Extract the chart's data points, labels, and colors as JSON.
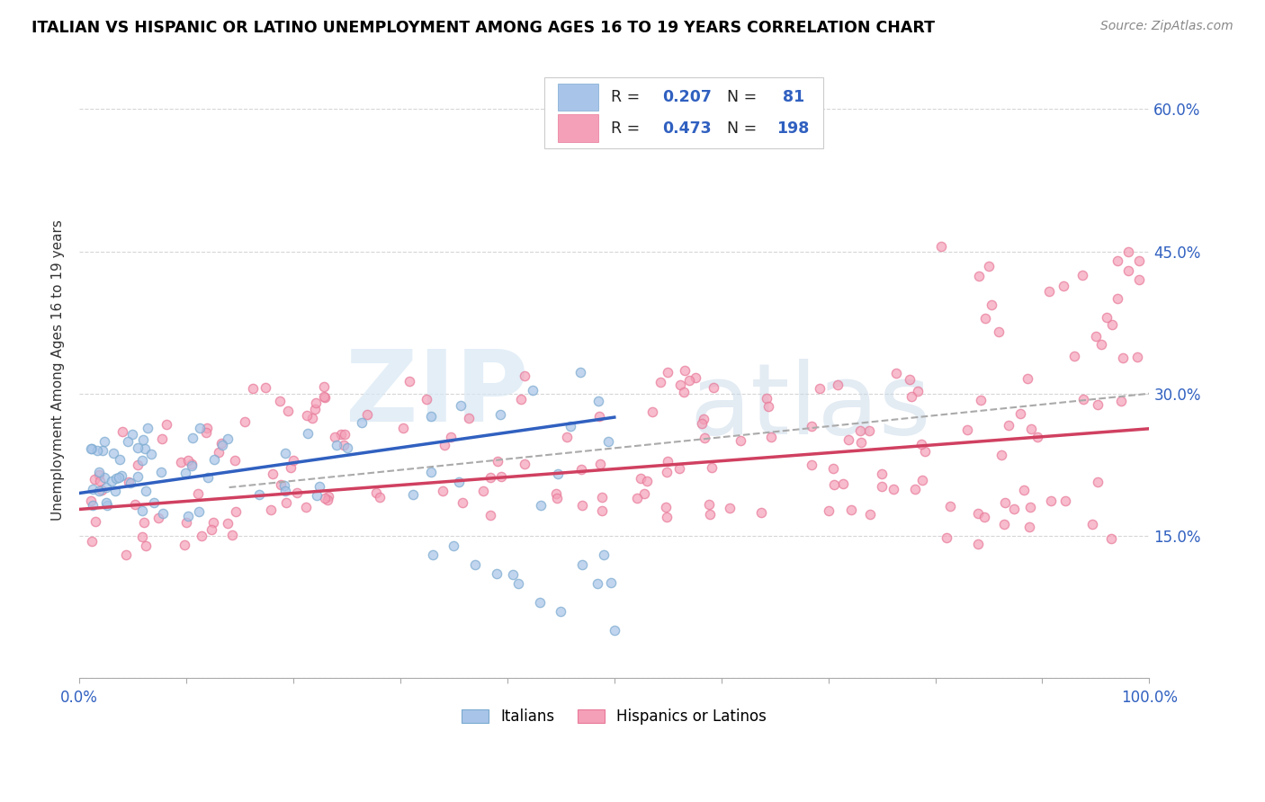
{
  "title": "ITALIAN VS HISPANIC OR LATINO UNEMPLOYMENT AMONG AGES 16 TO 19 YEARS CORRELATION CHART",
  "source": "Source: ZipAtlas.com",
  "ylabel": "Unemployment Among Ages 16 to 19 years",
  "xlim": [
    0,
    1.0
  ],
  "ylim": [
    0,
    0.65
  ],
  "xticks": [
    0.0,
    0.1,
    0.2,
    0.3,
    0.4,
    0.5,
    0.6,
    0.7,
    0.8,
    0.9,
    1.0
  ],
  "xticklabels": [
    "0.0%",
    "",
    "",
    "",
    "",
    "",
    "",
    "",
    "",
    "",
    "100.0%"
  ],
  "yticks": [
    0.0,
    0.15,
    0.3,
    0.45,
    0.6
  ],
  "yticklabels_right": [
    "",
    "15.0%",
    "30.0%",
    "45.0%",
    "60.0%"
  ],
  "italian_color": "#a8c4e8",
  "hispanic_color": "#f4a0b8",
  "italian_edge_color": "#7aaad0",
  "hispanic_edge_color": "#e87898",
  "italian_line_color": "#3060c0",
  "hispanic_line_color": "#d04060",
  "gray_dash_color": "#aaaaaa",
  "tick_label_color": "#3060c0",
  "R_italian": 0.207,
  "N_italian": 81,
  "R_hispanic": 0.473,
  "N_hispanic": 198,
  "watermark_color": "#d8e8f4",
  "legend_text_color": "#3060c0",
  "legend_R_label_color": "#000000"
}
